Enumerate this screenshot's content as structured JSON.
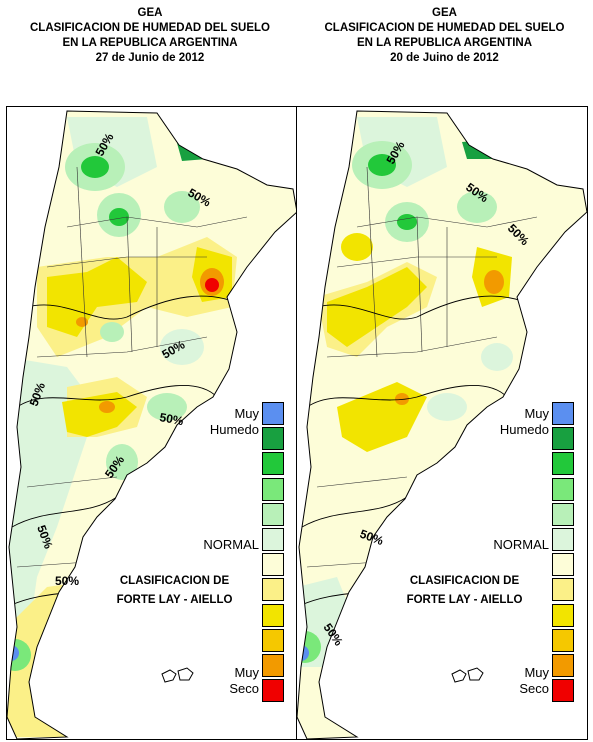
{
  "maps": [
    {
      "id": "left",
      "title_lines": [
        "GEA",
        "CLASIFICACION DE HUMEDAD DEL SUELO",
        "EN LA REPUBLICA ARGENTINA",
        "27 de Junio de 2012"
      ],
      "contour_label": "50%"
    },
    {
      "id": "right",
      "title_lines": [
        "GEA",
        "CLASIFICACION DE HUMEDAD DEL SUELO",
        "EN LA REPUBLICA ARGENTINA",
        "20 de Juino de 2012"
      ],
      "contour_label": "50%"
    }
  ],
  "legend": {
    "wet_label": "Muy\nHumedo",
    "normal_label": "NORMAL",
    "dry_label": "Muy\nSeco",
    "classification_title": "CLASIFICACION DE\nFORTE LAY - AIELLO",
    "colors": [
      "#5b8ff0",
      "#18a040",
      "#22c83a",
      "#7ae87a",
      "#b8f0b8",
      "#dcf5dc",
      "#fdfdd8",
      "#fbf088",
      "#f2e400",
      "#f5c800",
      "#f29a00",
      "#f00000"
    ]
  }
}
